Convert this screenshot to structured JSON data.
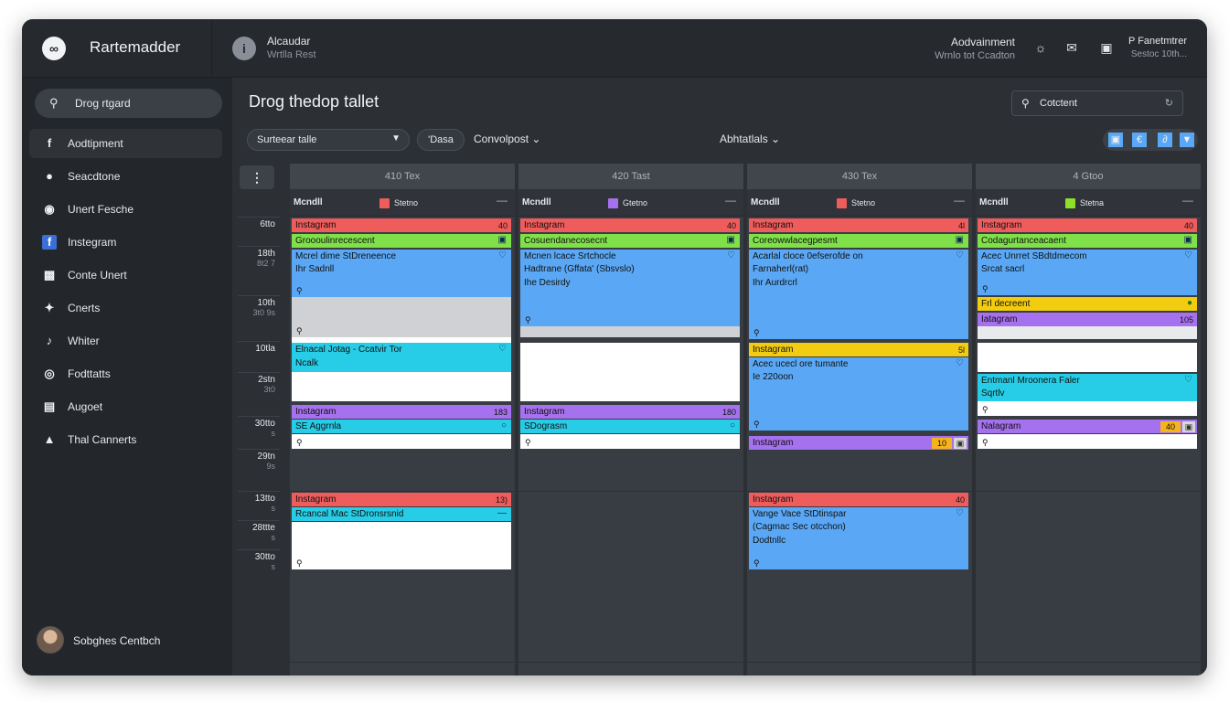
{
  "header": {
    "app_title": "Rartemadder",
    "user_name": "Alcaudar",
    "user_sub": "Wrtlla Rest",
    "account_name": "Aodvainment",
    "account_sub": "Wrnlo tot Ccadton",
    "profile_name": "P Fanetmtrer",
    "profile_sub": "Sestoc 10th..."
  },
  "sidebar": {
    "search_label": "Drog rtgard",
    "items": [
      {
        "label": "Aodtipment",
        "icon": "facebook-icon"
      },
      {
        "label": "Seacdtone",
        "icon": "circle-icon"
      },
      {
        "label": "Unert Fesche",
        "icon": "instagram-icon"
      },
      {
        "label": "Instegram",
        "icon": "facebook-square-icon"
      },
      {
        "label": "Conte Unert",
        "icon": "chart-icon"
      },
      {
        "label": "Cnerts",
        "icon": "twitter-icon"
      },
      {
        "label": "Whiter",
        "icon": "tiktok-icon"
      },
      {
        "label": "Fodttatts",
        "icon": "ring-icon"
      },
      {
        "label": "Augoet",
        "icon": "screen-icon"
      },
      {
        "label": "Thal Cannerts",
        "icon": "person-icon"
      }
    ],
    "user_name": "Sobghes Centbch"
  },
  "main": {
    "title": "Drog thedop tallet",
    "search_placeholder": "Cotctent",
    "filter_label": "Surteear talle",
    "pill_label": "'Dasa",
    "dropdown1": "Convolpost",
    "dropdown2": "Abhtatlals"
  },
  "time_slots": [
    {
      "t": "6tto",
      "s": ""
    },
    {
      "t": "18th",
      "s": "8t2 7"
    },
    {
      "t": "10th",
      "s": "3t0 9s"
    },
    {
      "t": "10tla",
      "s": ""
    },
    {
      "t": "2stn",
      "s": "3t0"
    },
    {
      "t": "30tto",
      "s": "s"
    },
    {
      "t": "29tn",
      "s": "9s"
    },
    {
      "t": "13tto",
      "s": "s"
    },
    {
      "t": "28ttte",
      "s": "s"
    },
    {
      "t": "30tto",
      "s": "s"
    }
  ],
  "days": [
    {
      "header": "410 Tex",
      "sub_name": "Mcndll",
      "status_label": "Stetno",
      "status_color": "#ee5c5c"
    },
    {
      "header": "420 Tast",
      "sub_name": "Mcndll",
      "status_label": "Gtetno",
      "status_color": "#a671ee"
    },
    {
      "header": "430 Tex",
      "sub_name": "Mcndll",
      "status_label": "Stetno",
      "status_color": "#ee5c5c"
    },
    {
      "header": "4 Gtoo",
      "sub_name": "Mcndll",
      "status_label": "Stetna",
      "status_color": "#8ee02a"
    }
  ],
  "events": {
    "d0": {
      "e1": {
        "title": "Instagram",
        "right": "40"
      },
      "e2": {
        "title": "Groooulinrecescent"
      },
      "e3": {
        "l1": "Mcrel dime StDreneence",
        "l2": "Ihr Sadnll"
      },
      "e4": {
        "l1": "Elnacal Jotag - Ccatvir Tor",
        "l2": "Ncalk"
      },
      "e5": {
        "title": "Instagram",
        "right": "183"
      },
      "e6": {
        "title": "SE Aggrnla"
      },
      "e7": {
        "title": "Instagram",
        "right": "13)"
      },
      "e8": {
        "title": "Rcancal Mac StDronsrsnid"
      }
    },
    "d1": {
      "e1": {
        "title": "Instagram",
        "right": "40"
      },
      "e2": {
        "title": "Cosuendanecosecnt"
      },
      "e3": {
        "l1": "Mcnen lcace Srtchocle",
        "l2": "Hadtrane (Gffata' (Sbsvslo)",
        "l3": "Ihe Desirdy"
      },
      "e5": {
        "title": "Instagram",
        "right": "180"
      },
      "e6": {
        "title": "SDograsm"
      }
    },
    "d2": {
      "e1": {
        "title": "Instagram",
        "right": "4l"
      },
      "e2": {
        "title": "Coreowwlacegpesmt"
      },
      "e3": {
        "l1": "Acarlal cloce 0efserofde on",
        "l2": "Farnaherl(rat)",
        "l3": "Ihr Aurdrcrl"
      },
      "e4": {
        "title": "Instagram",
        "right": "5l"
      },
      "e5": {
        "l1": "Acec ucecl ore tumante",
        "l2": "Ie 220oon"
      },
      "e6": {
        "title": "Instagram",
        "right": "10"
      },
      "e7": {
        "title": "Instagram",
        "right": "40"
      },
      "e8": {
        "l1": "Vange Vace StDtinspar",
        "l2": "(Cagmac Sec otcchon)",
        "l3": "Dodtnllc"
      }
    },
    "d3": {
      "e1": {
        "title": "Instagram",
        "right": "40"
      },
      "e2": {
        "title": "Codagurtanceacaent"
      },
      "e3": {
        "l1": "Acec Unrret SBdtdmecom",
        "l2": "Srcat sacrl"
      },
      "e4": {
        "title": "Frl decreent"
      },
      "e5": {
        "title": "Iatagram",
        "right": "105"
      },
      "e6": {
        "l1": "Entmanl Mroonera Faler",
        "l2": "Sqrtlv"
      },
      "e7": {
        "title": "Nalagram",
        "right": "40"
      }
    }
  }
}
